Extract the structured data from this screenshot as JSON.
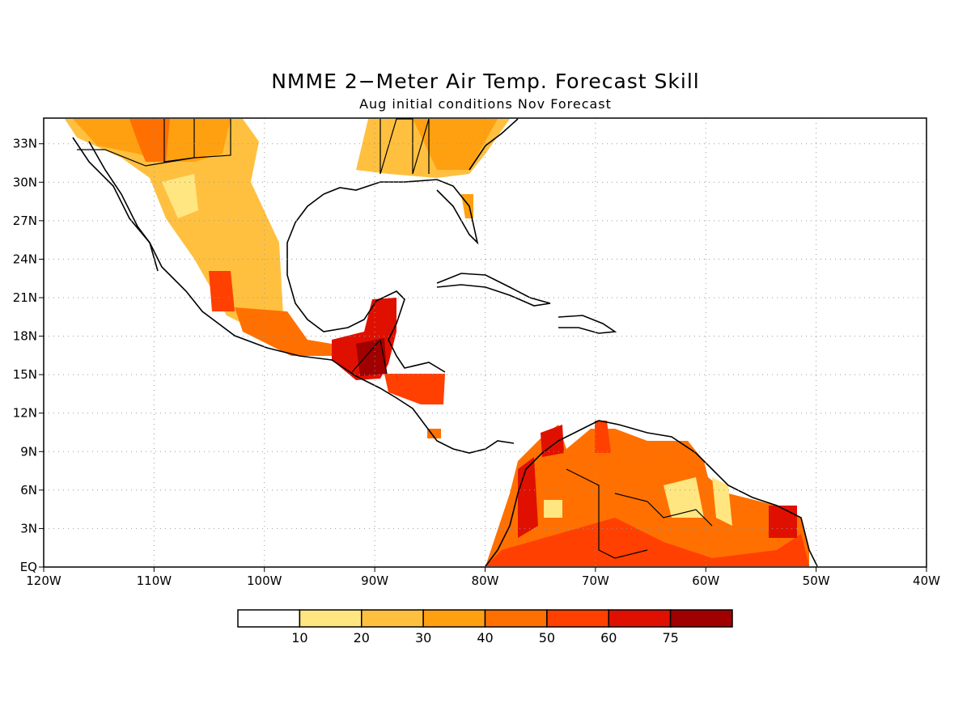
{
  "title": "NMME 2−Meter Air Temp. Forecast Skill",
  "subtitle": "Aug initial conditions  Nov Forecast",
  "map": {
    "lon_range": [
      -120,
      -40
    ],
    "lat_range": [
      0,
      35
    ],
    "lon_ticks": [
      "120W",
      "110W",
      "100W",
      "90W",
      "80W",
      "70W",
      "60W",
      "50W",
      "40W"
    ],
    "lat_ticks": [
      "EQ",
      "3N",
      "6N",
      "9N",
      "12N",
      "15N",
      "18N",
      "21N",
      "24N",
      "27N",
      "30N",
      "33N"
    ],
    "ocean_color": "#ffffff",
    "coast_color": "#000000",
    "grid": "dotted"
  },
  "colorbar": {
    "colors": [
      "#ffffff",
      "#ffe680",
      "#ffc040",
      "#ffa010",
      "#ff7000",
      "#ff4000",
      "#e01000",
      "#a00000"
    ],
    "labels": [
      "10",
      "20",
      "30",
      "40",
      "50",
      "60",
      "75"
    ]
  }
}
